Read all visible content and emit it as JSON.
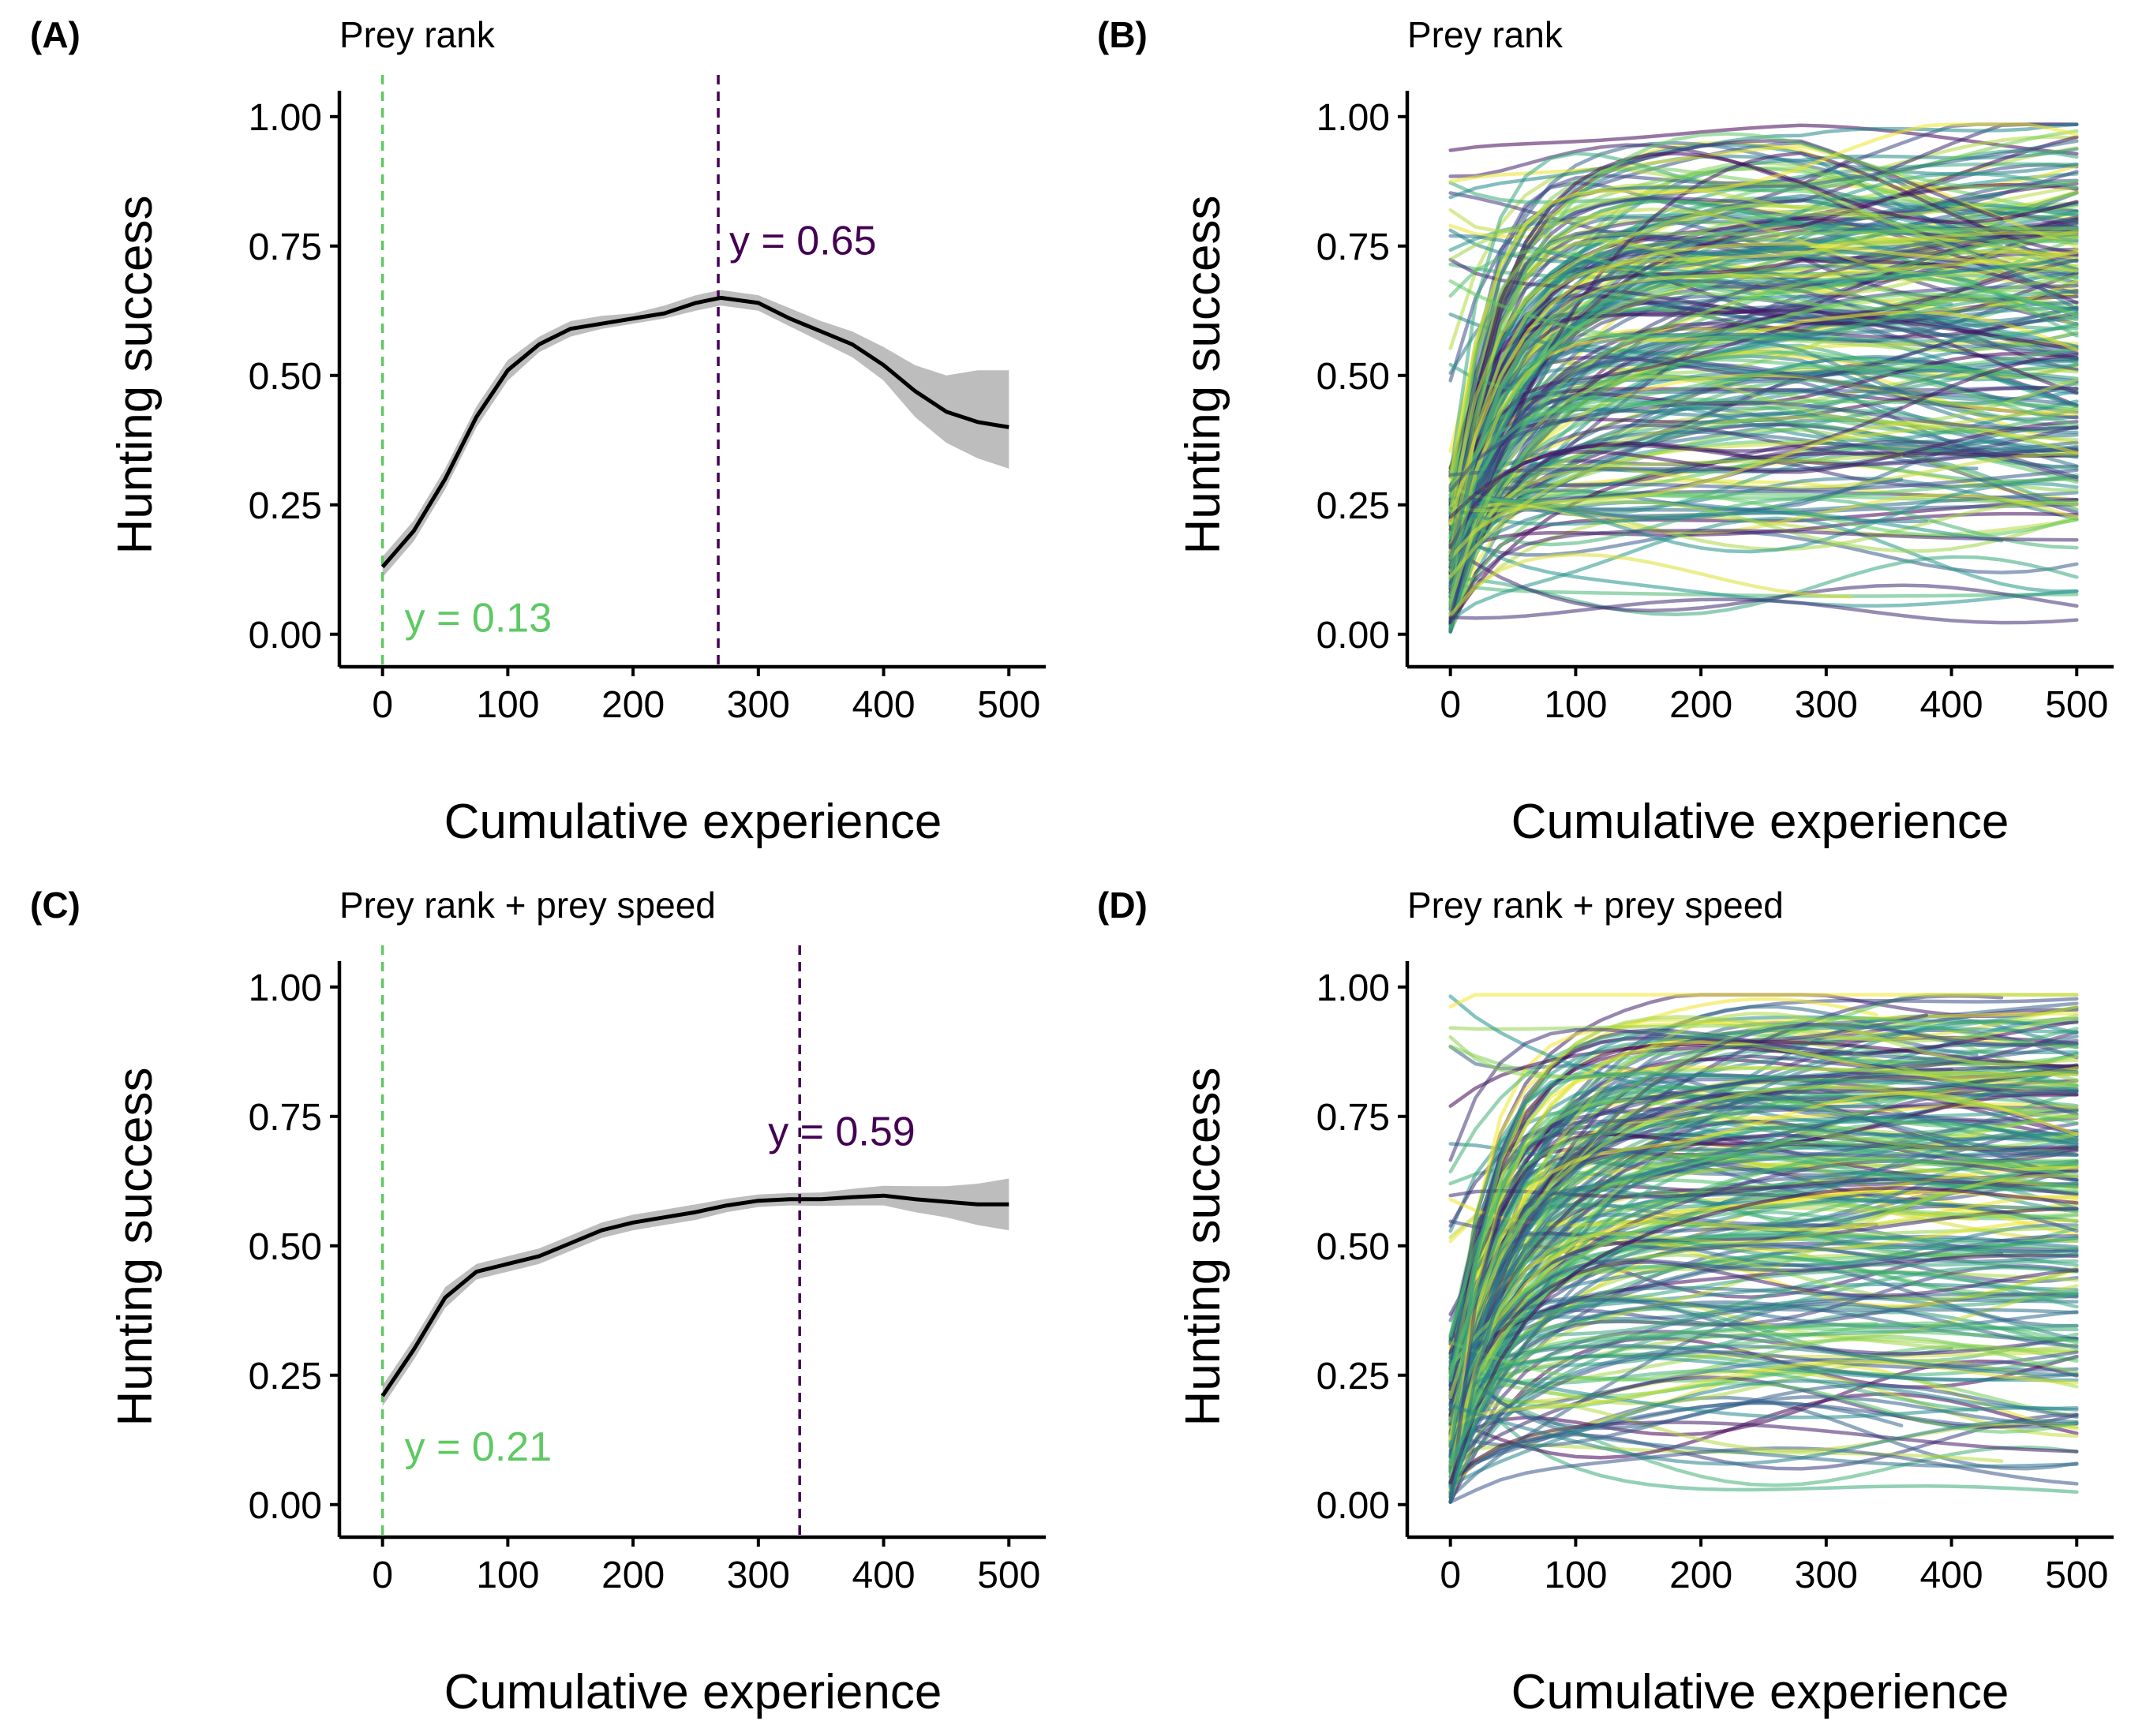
{
  "colors": {
    "experienced_line": "#440154",
    "inexperienced_line": "#5ec962",
    "mean_line": "#000000",
    "ci_band": "#bdbdbd",
    "palette": [
      "#440154",
      "#3b528b",
      "#21918c",
      "#5ec962",
      "#fde725"
    ]
  },
  "chart_data": [
    {
      "panel": "(A)",
      "type": "line",
      "title": "Prey rank",
      "xlabel": "Cumulative experience",
      "ylabel": "Hunting success",
      "xlim": [
        -25,
        520
      ],
      "ylim": [
        -0.04,
        1.05
      ],
      "xticks": [
        "0",
        "100",
        "200",
        "300",
        "400",
        "500"
      ],
      "yticks": [
        "0.00",
        "0.25",
        "0.50",
        "0.75",
        "1.00"
      ],
      "grid": false,
      "series": [
        {
          "x": [
            0,
            25,
            50,
            75,
            100,
            125,
            150,
            175,
            200,
            225,
            250,
            270,
            300,
            325,
            350,
            375,
            400,
            425,
            450,
            475,
            500
          ],
          "y": [
            0.13,
            0.2,
            0.3,
            0.42,
            0.51,
            0.56,
            0.59,
            0.6,
            0.61,
            0.62,
            0.64,
            0.65,
            0.64,
            0.61,
            0.585,
            0.56,
            0.52,
            0.47,
            0.43,
            0.41,
            0.4
          ],
          "ci_low": [
            0.11,
            0.18,
            0.28,
            0.4,
            0.49,
            0.545,
            0.575,
            0.59,
            0.6,
            0.61,
            0.625,
            0.635,
            0.625,
            0.595,
            0.565,
            0.535,
            0.49,
            0.42,
            0.37,
            0.34,
            0.32
          ],
          "ci_high": [
            0.15,
            0.22,
            0.32,
            0.44,
            0.53,
            0.575,
            0.605,
            0.615,
            0.62,
            0.635,
            0.655,
            0.665,
            0.655,
            0.63,
            0.605,
            0.585,
            0.555,
            0.52,
            0.5,
            0.51,
            0.51
          ]
        }
      ],
      "vlines": [
        {
          "x": 0,
          "color": "inexperienced_line",
          "label": "y = 0.13"
        },
        {
          "x": 268,
          "color": "experienced_line",
          "label": "y = 0.65"
        }
      ]
    },
    {
      "panel": "(B)",
      "type": "line",
      "title": "Prey rank",
      "xlabel": "Cumulative experience",
      "ylabel": "Hunting success",
      "xlim": [
        -25,
        520
      ],
      "ylim": [
        -0.04,
        1.05
      ],
      "xticks": [
        "0",
        "100",
        "200",
        "300",
        "400",
        "500"
      ],
      "yticks": [
        "0.00",
        "0.25",
        "0.50",
        "0.75",
        "1.00"
      ],
      "grid": false,
      "individual_curves": 253,
      "seed": 7
    },
    {
      "panel": "(C)",
      "type": "line",
      "title": "Prey rank + prey speed",
      "xlabel": "Cumulative experience",
      "ylabel": "Hunting success",
      "xlim": [
        -25,
        520
      ],
      "ylim": [
        -0.04,
        1.05
      ],
      "xticks": [
        "0",
        "100",
        "200",
        "300",
        "400",
        "500"
      ],
      "yticks": [
        "0.00",
        "0.25",
        "0.50",
        "0.75",
        "1.00"
      ],
      "grid": false,
      "series": [
        {
          "x": [
            0,
            25,
            50,
            75,
            100,
            125,
            150,
            175,
            200,
            225,
            250,
            275,
            300,
            325,
            350,
            375,
            400,
            425,
            450,
            475,
            500
          ],
          "y": [
            0.21,
            0.3,
            0.4,
            0.45,
            0.465,
            0.48,
            0.505,
            0.53,
            0.545,
            0.555,
            0.565,
            0.578,
            0.587,
            0.59,
            0.59,
            0.594,
            0.597,
            0.59,
            0.585,
            0.58,
            0.58
          ],
          "ci_low": [
            0.19,
            0.28,
            0.38,
            0.435,
            0.45,
            0.465,
            0.49,
            0.515,
            0.53,
            0.54,
            0.55,
            0.565,
            0.575,
            0.578,
            0.577,
            0.578,
            0.578,
            0.565,
            0.555,
            0.54,
            0.53
          ],
          "ci_high": [
            0.23,
            0.32,
            0.42,
            0.465,
            0.48,
            0.495,
            0.52,
            0.545,
            0.56,
            0.57,
            0.58,
            0.591,
            0.599,
            0.602,
            0.603,
            0.61,
            0.616,
            0.615,
            0.615,
            0.62,
            0.63
          ]
        }
      ],
      "vlines": [
        {
          "x": 0,
          "color": "inexperienced_line",
          "label": "y = 0.21"
        },
        {
          "x": 333,
          "color": "experienced_line",
          "label": "y = 0.59"
        }
      ]
    },
    {
      "panel": "(D)",
      "type": "line",
      "title": "Prey rank + prey speed",
      "xlabel": "Cumulative experience",
      "ylabel": "Hunting success",
      "xlim": [
        -25,
        520
      ],
      "ylim": [
        -0.04,
        1.05
      ],
      "xticks": [
        "0",
        "100",
        "200",
        "300",
        "400",
        "500"
      ],
      "yticks": [
        "0.00",
        "0.25",
        "0.50",
        "0.75",
        "1.00"
      ],
      "grid": false,
      "individual_curves": 253,
      "seed": 19
    }
  ]
}
